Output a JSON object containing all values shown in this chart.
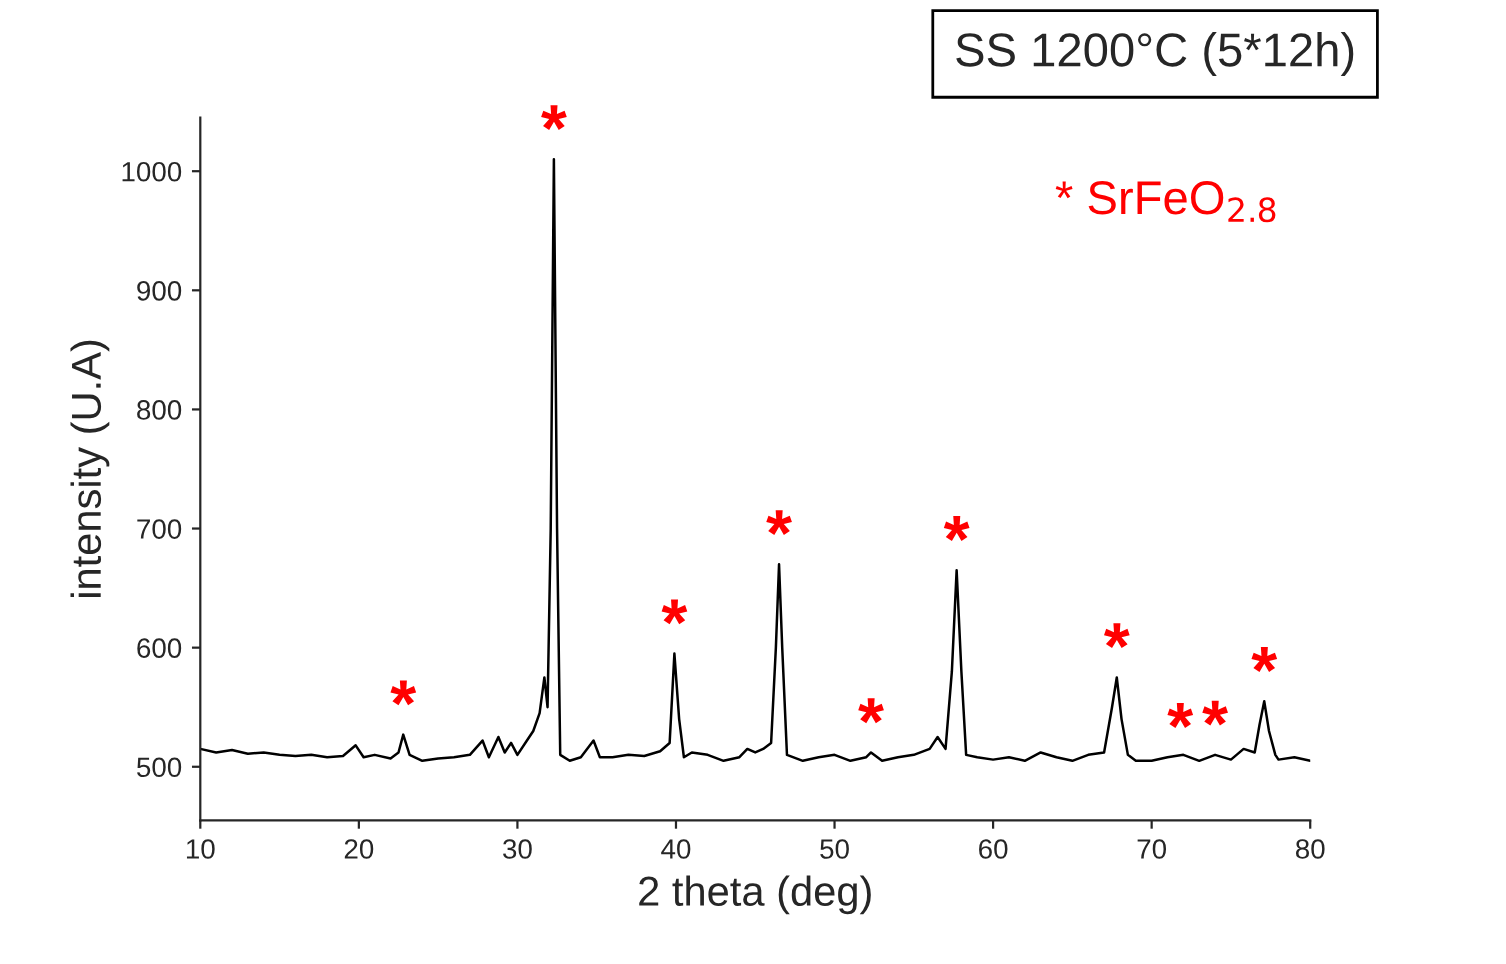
{
  "chart_data": {
    "type": "line",
    "title": "SS 1200°C (5*12h)",
    "xlabel": "2 theta (deg)",
    "ylabel": "intensity (U.A)",
    "x": [
      10,
      11,
      12,
      13,
      14,
      15,
      16,
      17,
      18,
      19,
      19.8,
      20.3,
      21,
      22,
      22.5,
      22.8,
      23.2,
      24,
      25,
      26,
      27,
      27.8,
      28.2,
      28.8,
      29.2,
      29.6,
      30,
      30.6,
      31,
      31.4,
      31.7,
      31.9,
      32.1,
      32.3,
      32.5,
      32.7,
      33.3,
      34,
      34.8,
      35.2,
      36,
      37,
      38,
      39,
      39.6,
      39.9,
      40.2,
      40.5,
      41,
      42,
      43,
      44,
      44.5,
      45,
      45.5,
      46,
      46.3,
      46.5,
      46.7,
      47,
      48,
      49,
      50,
      51,
      52,
      52.3,
      53,
      54,
      55,
      56,
      56.5,
      57,
      57.4,
      57.7,
      58,
      58.3,
      59,
      60,
      61,
      62,
      63,
      64,
      65,
      66,
      67,
      67.5,
      67.8,
      68.1,
      68.5,
      69,
      70,
      71,
      72,
      73,
      74,
      75,
      75.8,
      76.5,
      76.8,
      77.1,
      77.4,
      77.8,
      78,
      79,
      80
    ],
    "series": [
      {
        "color": "#000000",
        "values": [
          515,
          512,
          514,
          511,
          512,
          510,
          509,
          510,
          508,
          509,
          518,
          508,
          510,
          507,
          512,
          527,
          510,
          505,
          507,
          508,
          510,
          522,
          508,
          525,
          512,
          520,
          510,
          522,
          530,
          545,
          575,
          550,
          700,
          1010,
          700,
          510,
          505,
          508,
          522,
          508,
          508,
          510,
          509,
          513,
          520,
          595,
          540,
          508,
          512,
          510,
          505,
          508,
          515,
          512,
          515,
          520,
          600,
          670,
          600,
          510,
          505,
          508,
          510,
          505,
          508,
          512,
          505,
          508,
          510,
          515,
          525,
          515,
          580,
          665,
          580,
          510,
          508,
          506,
          508,
          505,
          512,
          508,
          505,
          510,
          512,
          550,
          575,
          540,
          510,
          505,
          505,
          508,
          510,
          505,
          510,
          506,
          515,
          512,
          535,
          555,
          530,
          510,
          506,
          508,
          505
        ]
      }
    ],
    "xlim": [
      10,
      80
    ],
    "ylim": [
      455,
      1045
    ],
    "xticks": [
      10,
      20,
      30,
      40,
      50,
      60,
      70,
      80
    ],
    "yticks": [
      500,
      600,
      700,
      800,
      900,
      1000
    ],
    "grid": false,
    "line_style": "solid",
    "marker": "none",
    "annotations": [
      "* SrFeO$_{2.8}$",
      {
        "text": "*",
        "x": 22.8,
        "y": 527
      },
      {
        "text": "*",
        "x": 32.3,
        "y": 1010
      },
      {
        "text": "*",
        "x": 39.9,
        "y": 595
      },
      {
        "text": "*",
        "x": 46.5,
        "y": 670
      },
      {
        "text": "*",
        "x": 52.3,
        "y": 512
      },
      {
        "text": "*",
        "x": 57.7,
        "y": 665
      },
      {
        "text": "*",
        "x": 67.8,
        "y": 575
      },
      {
        "text": "*",
        "x": 71.8,
        "y": 508
      },
      {
        "text": "*",
        "x": 74,
        "y": 510
      },
      {
        "text": "*",
        "x": 77.1,
        "y": 555
      }
    ]
  }
}
